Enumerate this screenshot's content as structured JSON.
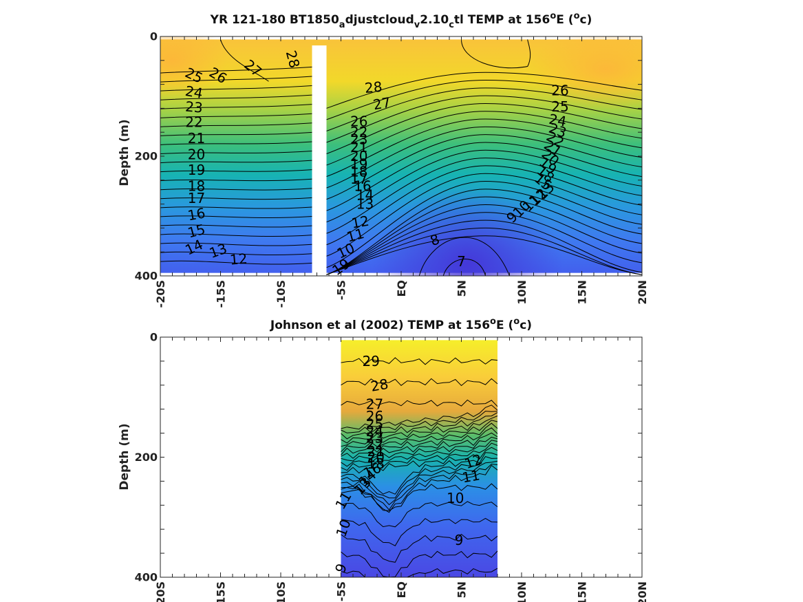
{
  "chart_data": [
    {
      "id": "model",
      "type": "heatmap",
      "title_parts": [
        "YR 121-180 BT1850",
        "a",
        "djustcloud",
        "v",
        "2.10",
        "c",
        "tl TEMP at 156",
        "o",
        "E (",
        "o",
        "c)"
      ],
      "ylabel": "Depth (m)",
      "x_ticks": [
        -20,
        -15,
        -10,
        -5,
        0,
        5,
        10,
        15,
        20
      ],
      "x_tick_labels": [
        "-20S",
        "-15S",
        "-10S",
        "-5S",
        "EQ",
        "5N",
        "10N",
        "15N",
        "20N"
      ],
      "y_ticks": [
        0,
        200,
        400
      ],
      "y_tick_labels": [
        "0",
        "200",
        "400"
      ],
      "xlim": [
        -20,
        20
      ],
      "ylim": [
        0,
        400
      ],
      "data_x_range": [
        -20,
        20
      ],
      "data_depth_range": [
        5,
        395
      ],
      "gap_x": [
        -7.4,
        -6.2
      ],
      "gap_depth_top": 15,
      "contour_labels": [
        {
          "text": "28",
          "lat": -9.0,
          "depth": 38,
          "rot": 75
        },
        {
          "text": "27",
          "lat": -12.3,
          "depth": 53,
          "rot": 40
        },
        {
          "text": "26",
          "lat": -15.2,
          "depth": 65,
          "rot": 30
        },
        {
          "text": "25",
          "lat": -17.2,
          "depth": 65,
          "rot": 25
        },
        {
          "text": "24",
          "lat": -17.2,
          "depth": 93,
          "rot": 10
        },
        {
          "text": "23",
          "lat": -17.2,
          "depth": 118,
          "rot": 5
        },
        {
          "text": "22",
          "lat": -17.2,
          "depth": 143,
          "rot": 0
        },
        {
          "text": "21",
          "lat": -17.0,
          "depth": 170,
          "rot": 0
        },
        {
          "text": "20",
          "lat": -17.0,
          "depth": 197,
          "rot": 0
        },
        {
          "text": "19",
          "lat": -17.0,
          "depth": 223,
          "rot": 0
        },
        {
          "text": "18",
          "lat": -17.0,
          "depth": 250,
          "rot": 0
        },
        {
          "text": "17",
          "lat": -17.0,
          "depth": 270,
          "rot": 0
        },
        {
          "text": "16",
          "lat": -17.0,
          "depth": 297,
          "rot": -10
        },
        {
          "text": "15",
          "lat": -17.0,
          "depth": 325,
          "rot": -15
        },
        {
          "text": "14",
          "lat": -17.2,
          "depth": 352,
          "rot": -25
        },
        {
          "text": "13",
          "lat": -15.2,
          "depth": 358,
          "rot": -20
        },
        {
          "text": "12",
          "lat": -13.5,
          "depth": 372,
          "rot": -5
        },
        {
          "text": "28",
          "lat": -2.3,
          "depth": 85,
          "rot": -5
        },
        {
          "text": "27",
          "lat": -1.6,
          "depth": 112,
          "rot": -10
        },
        {
          "text": "26",
          "lat": -3.5,
          "depth": 142,
          "rot": 0
        },
        {
          "text": "22",
          "lat": -3.5,
          "depth": 160,
          "rot": 0
        },
        {
          "text": "23",
          "lat": -3.5,
          "depth": 172,
          "rot": 0
        },
        {
          "text": "21",
          "lat": -3.5,
          "depth": 185,
          "rot": 0
        },
        {
          "text": "20",
          "lat": -3.5,
          "depth": 200,
          "rot": 0
        },
        {
          "text": "19",
          "lat": -3.5,
          "depth": 213,
          "rot": 0
        },
        {
          "text": "18",
          "lat": -3.5,
          "depth": 226,
          "rot": 0
        },
        {
          "text": "17",
          "lat": -3.5,
          "depth": 238,
          "rot": 0
        },
        {
          "text": "16",
          "lat": -3.2,
          "depth": 250,
          "rot": 0
        },
        {
          "text": "14",
          "lat": -3.0,
          "depth": 265,
          "rot": 0
        },
        {
          "text": "13",
          "lat": -3.0,
          "depth": 280,
          "rot": 0
        },
        {
          "text": "12",
          "lat": -3.4,
          "depth": 310,
          "rot": -10
        },
        {
          "text": "11",
          "lat": -3.8,
          "depth": 332,
          "rot": -15
        },
        {
          "text": "10",
          "lat": -4.6,
          "depth": 358,
          "rot": -25
        },
        {
          "text": "19",
          "lat": -5.0,
          "depth": 385,
          "rot": -35
        },
        {
          "text": "8",
          "lat": 2.8,
          "depth": 340,
          "rot": -20
        },
        {
          "text": "7",
          "lat": 5.0,
          "depth": 376,
          "rot": 0
        },
        {
          "text": "9",
          "lat": 9.2,
          "depth": 302,
          "rot": -45
        },
        {
          "text": "10",
          "lat": 10.0,
          "depth": 288,
          "rot": -45
        },
        {
          "text": "11",
          "lat": 10.8,
          "depth": 278,
          "rot": -45
        },
        {
          "text": "12",
          "lat": 11.4,
          "depth": 268,
          "rot": -45
        },
        {
          "text": "13",
          "lat": 12.0,
          "depth": 258,
          "rot": -45
        },
        {
          "text": "26",
          "lat": 13.2,
          "depth": 90,
          "rot": 0
        },
        {
          "text": "25",
          "lat": 13.2,
          "depth": 117,
          "rot": 0
        },
        {
          "text": "24",
          "lat": 13.0,
          "depth": 140,
          "rot": 10
        },
        {
          "text": "23",
          "lat": 13.0,
          "depth": 157,
          "rot": 20
        },
        {
          "text": "22",
          "lat": 12.8,
          "depth": 172,
          "rot": 30
        },
        {
          "text": "21",
          "lat": 12.6,
          "depth": 187,
          "rot": 35
        },
        {
          "text": "20",
          "lat": 12.4,
          "depth": 202,
          "rot": 40
        },
        {
          "text": "19",
          "lat": 12.2,
          "depth": 216,
          "rot": 40
        },
        {
          "text": "18",
          "lat": 12.0,
          "depth": 230,
          "rot": 40
        },
        {
          "text": "15",
          "lat": 11.8,
          "depth": 243,
          "rot": 40
        }
      ]
    },
    {
      "id": "obs",
      "type": "heatmap",
      "title_parts": [
        "Johnson et al (2002) TEMP at 156",
        "o",
        "E (",
        "o",
        "c)"
      ],
      "ylabel": "Depth (m)",
      "x_ticks": [
        -20,
        -15,
        -10,
        -5,
        0,
        5,
        10,
        15,
        20
      ],
      "x_tick_labels": [
        "20S",
        "15S",
        "10S",
        "-5S",
        "EQ",
        "5N",
        "10N",
        "15N",
        "20N"
      ],
      "y_ticks": [
        0,
        200,
        400
      ],
      "y_tick_labels": [
        "0",
        "200",
        "400"
      ],
      "xlim": [
        -20,
        20
      ],
      "ylim": [
        0,
        400
      ],
      "data_x_range": [
        -5.0,
        8.0
      ],
      "data_depth_range": [
        5,
        400
      ],
      "contour_labels": [
        {
          "text": "29",
          "lat": -2.5,
          "depth": 40,
          "rot": 0
        },
        {
          "text": "28",
          "lat": -1.8,
          "depth": 80,
          "rot": -10
        },
        {
          "text": "27",
          "lat": -2.2,
          "depth": 112,
          "rot": 0
        },
        {
          "text": "26",
          "lat": -2.2,
          "depth": 132,
          "rot": 0
        },
        {
          "text": "25",
          "lat": -2.2,
          "depth": 145,
          "rot": 0
        },
        {
          "text": "24",
          "lat": -2.2,
          "depth": 157,
          "rot": 0
        },
        {
          "text": "23",
          "lat": -2.2,
          "depth": 168,
          "rot": 0
        },
        {
          "text": "22",
          "lat": -2.2,
          "depth": 179,
          "rot": 0
        },
        {
          "text": "21",
          "lat": -2.1,
          "depth": 190,
          "rot": 0
        },
        {
          "text": "20",
          "lat": -2.1,
          "depth": 200,
          "rot": 0
        },
        {
          "text": "18",
          "lat": -2.1,
          "depth": 211,
          "rot": 0
        },
        {
          "text": "16",
          "lat": -2.4,
          "depth": 222,
          "rot": -25
        },
        {
          "text": "14",
          "lat": -2.8,
          "depth": 235,
          "rot": -40
        },
        {
          "text": "13",
          "lat": -3.2,
          "depth": 248,
          "rot": -50
        },
        {
          "text": "11",
          "lat": -4.8,
          "depth": 272,
          "rot": -60
        },
        {
          "text": "10",
          "lat": -4.8,
          "depth": 318,
          "rot": -70
        },
        {
          "text": "9",
          "lat": -5.0,
          "depth": 385,
          "rot": -70
        },
        {
          "text": "12",
          "lat": 6.0,
          "depth": 207,
          "rot": -20
        },
        {
          "text": "11",
          "lat": 5.8,
          "depth": 232,
          "rot": -10
        },
        {
          "text": "10",
          "lat": 4.5,
          "depth": 268,
          "rot": 0
        },
        {
          "text": "9",
          "lat": 4.8,
          "depth": 338,
          "rot": 0
        }
      ]
    }
  ]
}
